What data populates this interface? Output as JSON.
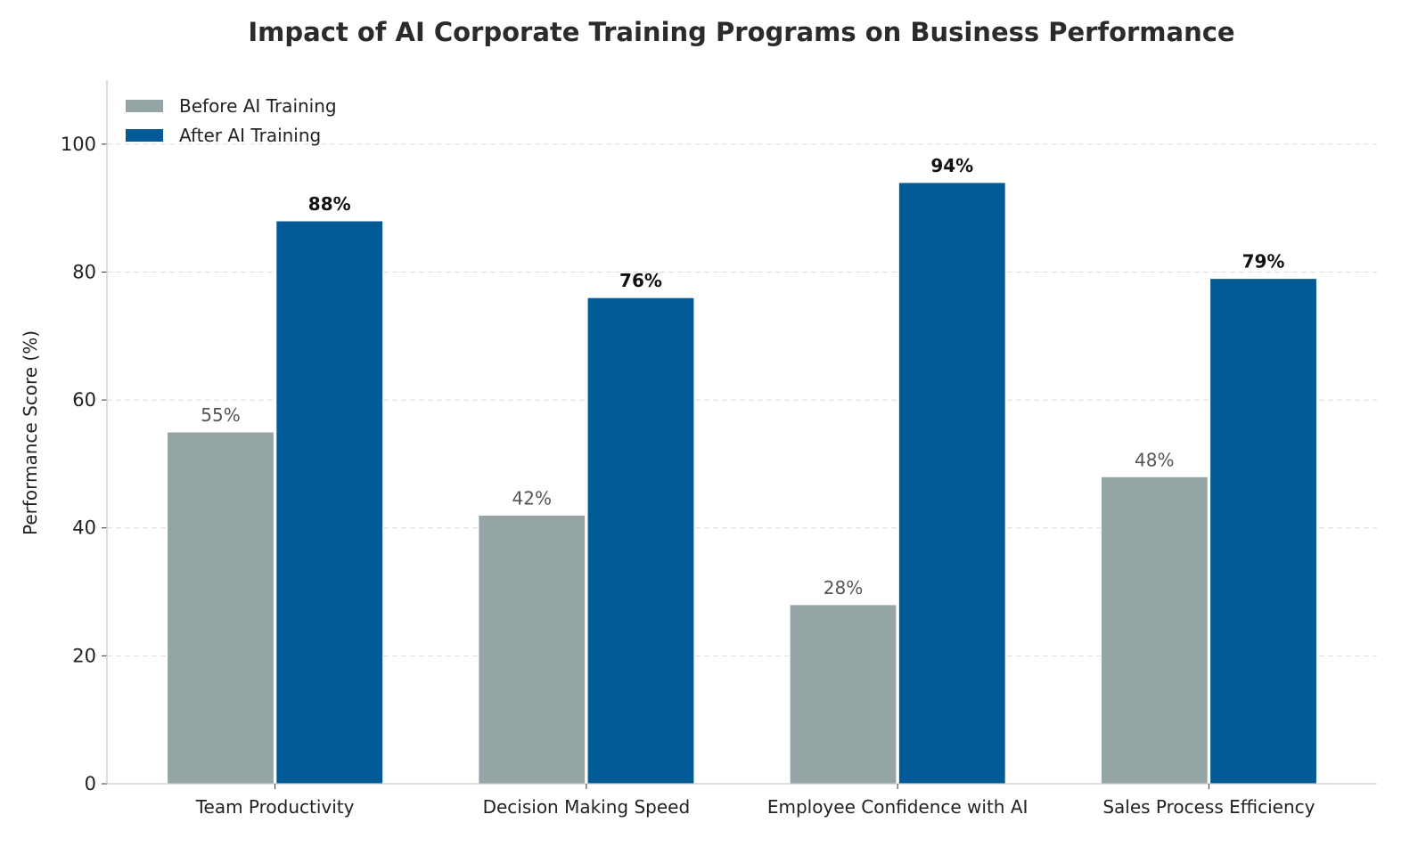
{
  "chart_data": {
    "type": "bar",
    "title": "Impact of AI Corporate Training Programs on Business Performance",
    "xlabel": "",
    "ylabel": "Performance Score (%)",
    "categories": [
      "Team Productivity",
      "Decision Making Speed",
      "Employee Confidence with AI",
      "Sales Process Efficiency"
    ],
    "series": [
      {
        "name": "Before AI Training",
        "values": [
          55,
          42,
          28,
          48
        ],
        "color": "#95a5a6",
        "labels": [
          "55%",
          "42%",
          "28%",
          "48%"
        ]
      },
      {
        "name": "After AI Training",
        "values": [
          88,
          76,
          94,
          79
        ],
        "color": "#005a96",
        "labels": [
          "88%",
          "76%",
          "94%",
          "79%"
        ]
      }
    ],
    "ylim": [
      0,
      110
    ],
    "yticks": [
      0,
      20,
      40,
      60,
      80,
      100
    ],
    "grid": "horizontal dashed",
    "legend": "top-left"
  }
}
